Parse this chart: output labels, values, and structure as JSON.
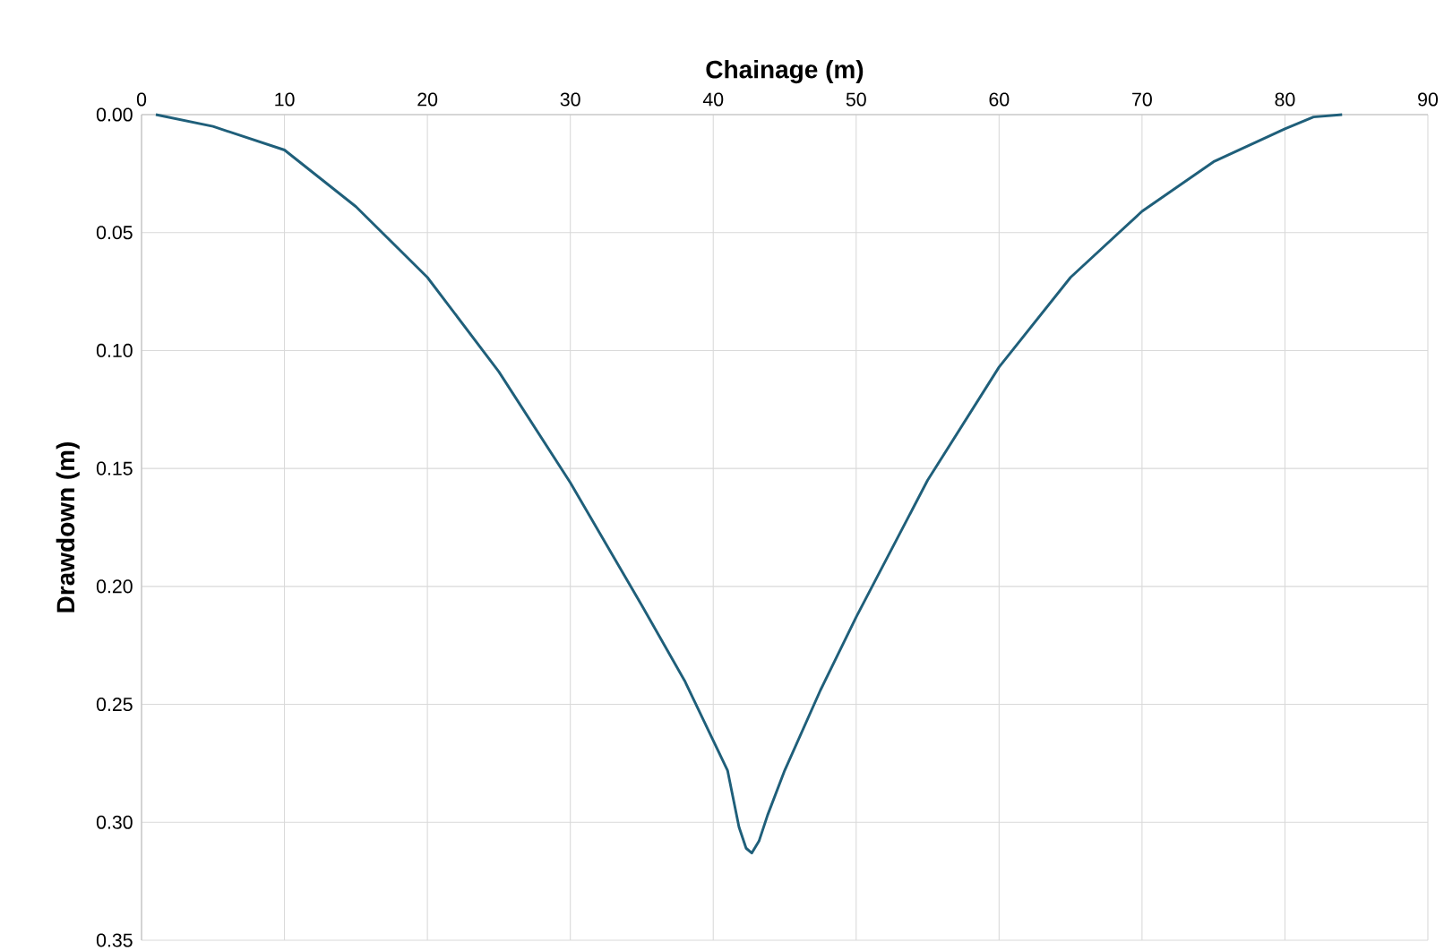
{
  "chart_data": {
    "type": "line",
    "xlabel": "Chainage (m)",
    "ylabel": "Drawdown (m)",
    "xlim": [
      0,
      90
    ],
    "xticks": [
      0,
      10,
      20,
      30,
      40,
      50,
      60,
      70,
      80,
      90
    ],
    "ylim": [
      0.35,
      0
    ],
    "yticks": [
      {
        "value": 0,
        "label": "0.00"
      },
      {
        "value": 0.05,
        "label": "0.05"
      },
      {
        "value": 0.1,
        "label": "0.10"
      },
      {
        "value": 0.15,
        "label": "0.15"
      },
      {
        "value": 0.2,
        "label": "0.20"
      },
      {
        "value": 0.25,
        "label": "0.25"
      },
      {
        "value": 0.3,
        "label": "0.30"
      },
      {
        "value": 0.35,
        "label": "0.35"
      }
    ],
    "grid": true,
    "marker": "none",
    "line_style": "solid",
    "series": [
      {
        "color": "#1f5f7a",
        "x": [
          1,
          5,
          10,
          15,
          20,
          25,
          30,
          35,
          38,
          41,
          41.8,
          42.3,
          42.7,
          43.2,
          43.8,
          45,
          47.5,
          50,
          55,
          60,
          65,
          70,
          75,
          80,
          82,
          84
        ],
        "values": [
          0,
          0.005,
          0.015,
          0.039,
          0.069,
          0.109,
          0.156,
          0.208,
          0.24,
          0.278,
          0.302,
          0.311,
          0.313,
          0.308,
          0.297,
          0.278,
          0.244,
          0.213,
          0.155,
          0.107,
          0.069,
          0.041,
          0.02,
          0.006,
          0.001,
          0
        ]
      }
    ]
  }
}
